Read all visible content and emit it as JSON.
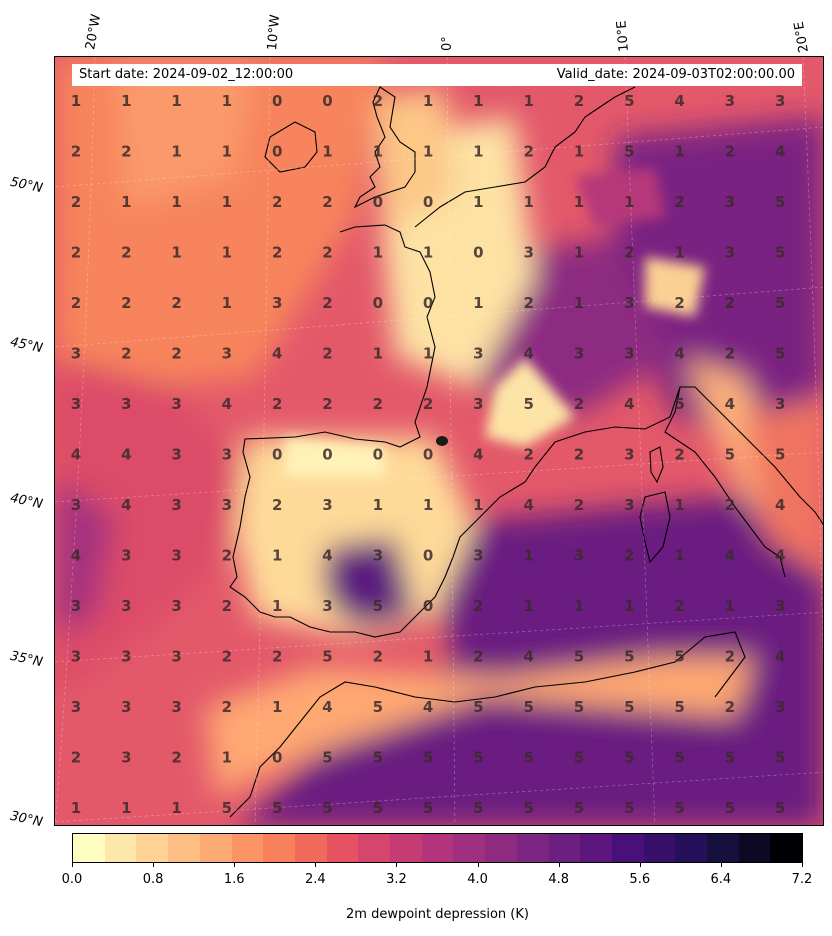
{
  "header": {
    "start_date": "Start date: 2024-09-02_12:00:00",
    "valid_date": "Valid_date: 2024-09-03T02:00:00.00"
  },
  "lon_labels": [
    "20°W",
    "10°W",
    "0°",
    "10°E",
    "20°E"
  ],
  "lat_labels": [
    "50°N",
    "45°N",
    "40°N",
    "35°N",
    "30°N"
  ],
  "colorbar": {
    "label": "2m dewpoint depression (K)",
    "ticks": [
      "0.0",
      "0.8",
      "1.6",
      "2.4",
      "3.2",
      "4.0",
      "4.8",
      "5.6",
      "6.4",
      "7.2"
    ],
    "colors": [
      "#fcfdbf",
      "#fde7a9",
      "#fed395",
      "#febf84",
      "#feaa74",
      "#fc9565",
      "#f8805b",
      "#f1695a",
      "#e75263",
      "#d6456c",
      "#c53c74",
      "#b2357b",
      "#a02f7f",
      "#8f2a81",
      "#7e2482",
      "#6d1f81",
      "#5c167e",
      "#4a1079",
      "#38106c",
      "#27105b",
      "#170f3c",
      "#0b0924",
      "#000004"
    ]
  },
  "grid_values": [
    [
      1,
      1,
      1,
      1,
      0,
      0,
      2,
      1,
      1,
      1,
      2,
      5,
      4,
      3,
      3
    ],
    [
      2,
      2,
      1,
      1,
      0,
      1,
      1,
      1,
      1,
      2,
      1,
      5,
      1,
      2,
      4
    ],
    [
      2,
      1,
      1,
      1,
      2,
      2,
      0,
      0,
      1,
      1,
      1,
      1,
      2,
      3,
      5
    ],
    [
      2,
      2,
      1,
      1,
      2,
      2,
      1,
      1,
      0,
      3,
      1,
      2,
      1,
      3,
      5
    ],
    [
      2,
      2,
      2,
      1,
      3,
      2,
      0,
      0,
      1,
      2,
      1,
      3,
      2,
      2,
      5
    ],
    [
      3,
      2,
      2,
      3,
      4,
      2,
      1,
      1,
      3,
      4,
      3,
      3,
      4,
      2,
      5
    ],
    [
      3,
      3,
      3,
      4,
      2,
      2,
      2,
      2,
      3,
      5,
      2,
      4,
      5,
      4,
      3
    ],
    [
      4,
      4,
      3,
      3,
      0,
      0,
      0,
      0,
      4,
      2,
      2,
      3,
      2,
      5,
      5
    ],
    [
      3,
      4,
      3,
      3,
      2,
      3,
      1,
      1,
      1,
      4,
      2,
      3,
      1,
      2,
      4
    ],
    [
      4,
      3,
      3,
      2,
      1,
      4,
      3,
      0,
      3,
      1,
      3,
      2,
      1,
      4,
      4
    ],
    [
      3,
      3,
      3,
      2,
      1,
      3,
      5,
      0,
      2,
      1,
      1,
      1,
      2,
      1,
      3
    ],
    [
      3,
      3,
      3,
      2,
      2,
      5,
      2,
      1,
      2,
      4,
      5,
      5,
      5,
      2,
      4
    ],
    [
      3,
      3,
      3,
      2,
      1,
      4,
      5,
      4,
      5,
      5,
      5,
      5,
      5,
      2,
      3
    ],
    [
      2,
      3,
      2,
      1,
      0,
      5,
      5,
      5,
      5,
      5,
      5,
      5,
      5,
      5,
      5
    ],
    [
      1,
      1,
      1,
      5,
      5,
      5,
      5,
      5,
      5,
      5,
      5,
      5,
      5,
      5,
      5
    ]
  ]
}
